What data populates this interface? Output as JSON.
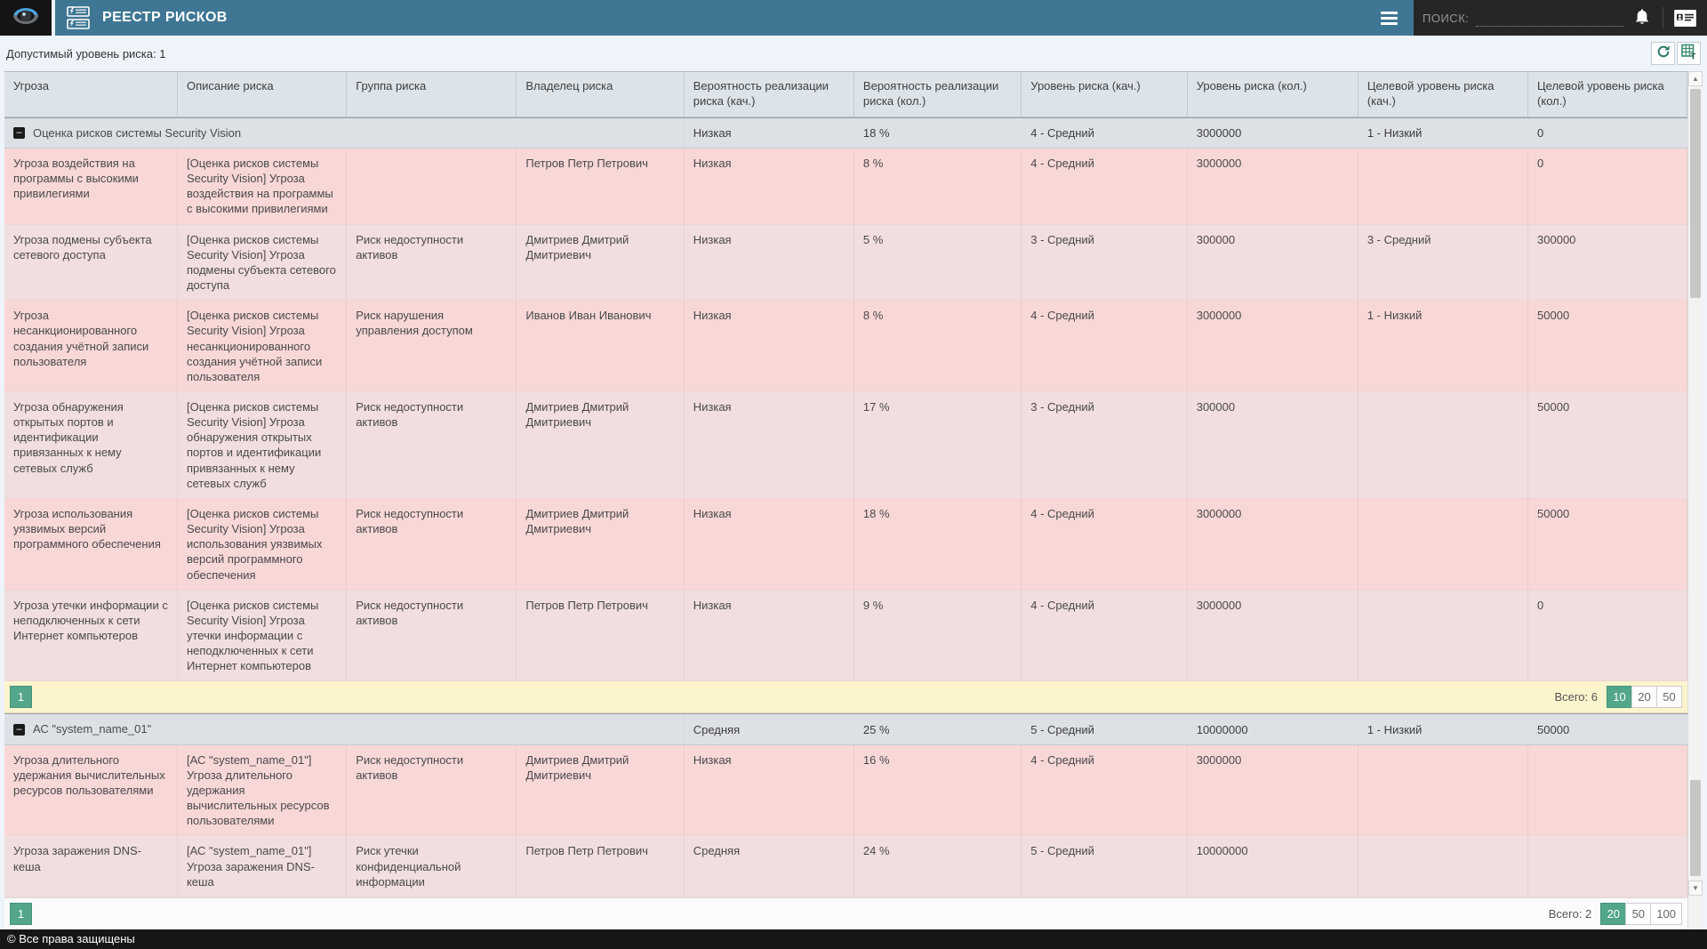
{
  "colors": {
    "accent_teal": "#3e7694",
    "selected_green": "#52a68a",
    "row_pink": "#f8d7d7",
    "row_pink_alt": "#f1dede",
    "pagination_yellow": "#fcf4cd",
    "footer_black": "#161616"
  },
  "topbar": {
    "title": "РЕЕСТР РИСКОВ",
    "search_label": "ПОИСК:",
    "search_value": "",
    "icons": [
      "security-vision-logo",
      "risk-register-icon",
      "menu-icon",
      "bell-icon",
      "contact-card-icon"
    ]
  },
  "toolbar": {
    "acceptable_risk_label": "Допустимый уровень риска: 1",
    "icons": [
      "refresh-icon",
      "table-settings-icon"
    ]
  },
  "scrollbar": {
    "up_glyph": "▲",
    "down_glyph": "▼"
  },
  "table": {
    "columns": [
      "Угроза",
      "Описание риска",
      "Группа риска",
      "Владелец риска",
      "Вероятность реализации риска (кач.)",
      "Вероятность реализации риска (кол.)",
      "Уровень риска (кач.)",
      "Уровень риска (кол.)",
      "Целевой уровень риска (кач.)",
      "Целевой уровень риска (кол.)"
    ],
    "groups": [
      {
        "name": "Оценка рисков системы Security Vision",
        "toggle_glyph": "–",
        "summary": [
          "Низкая",
          "18 %",
          "4 - Средний",
          "3000000",
          "1 - Низкий",
          "0"
        ],
        "rows": [
          {
            "cells": [
              "Угроза воздействия на программы с высокими привилегиями",
              "[Оценка рисков системы Security Vision] Угроза воздействия на программы с высокими привилегиями",
              "",
              "Петров Петр Петрович",
              "Низкая",
              "8 %",
              "4 - Средний",
              "3000000",
              "",
              "0"
            ]
          },
          {
            "cells": [
              "Угроза подмены субъекта сетевого доступа",
              "[Оценка рисков системы Security Vision] Угроза подмены субъекта сетевого доступа",
              "Риск недоступности активов",
              "Дмитриев Дмитрий Дмитриевич",
              "Низкая",
              "5 %",
              "3 - Средний",
              "300000",
              "3 - Средний",
              "300000"
            ]
          },
          {
            "cells": [
              "Угроза несанкционированного создания учётной записи пользователя",
              "[Оценка рисков системы Security Vision] Угроза несанкционированного создания учётной записи пользователя",
              "Риск нарушения управления доступом",
              "Иванов Иван Иванович",
              "Низкая",
              "8 %",
              "4 - Средний",
              "3000000",
              "1 - Низкий",
              "50000"
            ]
          },
          {
            "cells": [
              "Угроза обнаружения открытых портов и идентификации привязанных к нему сетевых служб",
              "[Оценка рисков системы Security Vision] Угроза обнаружения открытых портов и идентификации привязанных к нему сетевых служб",
              "Риск недоступности активов",
              "Дмитриев Дмитрий Дмитриевич",
              "Низкая",
              "17 %",
              "3 - Средний",
              "300000",
              "",
              "50000"
            ]
          },
          {
            "cells": [
              "Угроза использования уязвимых версий программного обеспечения",
              "[Оценка рисков системы Security Vision] Угроза использования уязвимых версий программного обеспечения",
              "Риск недоступности активов",
              "Дмитриев Дмитрий Дмитриевич",
              "Низкая",
              "18 %",
              "4 - Средний",
              "3000000",
              "",
              "50000"
            ]
          },
          {
            "cells": [
              "Угроза утечки информации с неподключенных к сети Интернет компьютеров",
              "[Оценка рисков системы Security Vision] Угроза утечки информации с неподключенных к сети Интернет компьютеров",
              "Риск недоступности активов",
              "Петров Петр Петрович",
              "Низкая",
              "9 %",
              "4 - Средний",
              "3000000",
              "",
              "0"
            ]
          }
        ],
        "pagination": {
          "page": "1",
          "total_label": "Всего: 6",
          "sizes": [
            "10",
            "20",
            "50"
          ],
          "active_size": "10",
          "highlighted": true
        }
      },
      {
        "name": "АС \"system_name_01\"",
        "toggle_glyph": "–",
        "summary": [
          "Средняя",
          "25 %",
          "5 - Средний",
          "10000000",
          "1 - Низкий",
          "50000"
        ],
        "rows": [
          {
            "cells": [
              "Угроза длительного удержания вычислительных ресурсов пользователями",
              "[АС \"system_name_01\"] Угроза длительного удержания вычислительных ресурсов пользователями",
              "Риск недоступности активов",
              "Дмитриев Дмитрий Дмитриевич",
              "Низкая",
              "16 %",
              "4 - Средний",
              "3000000",
              "",
              ""
            ]
          },
          {
            "cells": [
              "Угроза заражения DNS-кеша",
              "[АС \"system_name_01\"] Угроза заражения DNS-кеша",
              "Риск утечки конфиденциальной информации",
              "Петров Петр Петрович",
              "Средняя",
              "24 %",
              "5 - Средний",
              "10000000",
              "",
              ""
            ]
          }
        ],
        "pagination": {
          "page": "1",
          "total_label": "Всего: 2",
          "sizes": [
            "20",
            "50",
            "100"
          ],
          "active_size": "20",
          "highlighted": false
        }
      }
    ]
  },
  "footer": {
    "copyright": "© Все права защищены"
  }
}
